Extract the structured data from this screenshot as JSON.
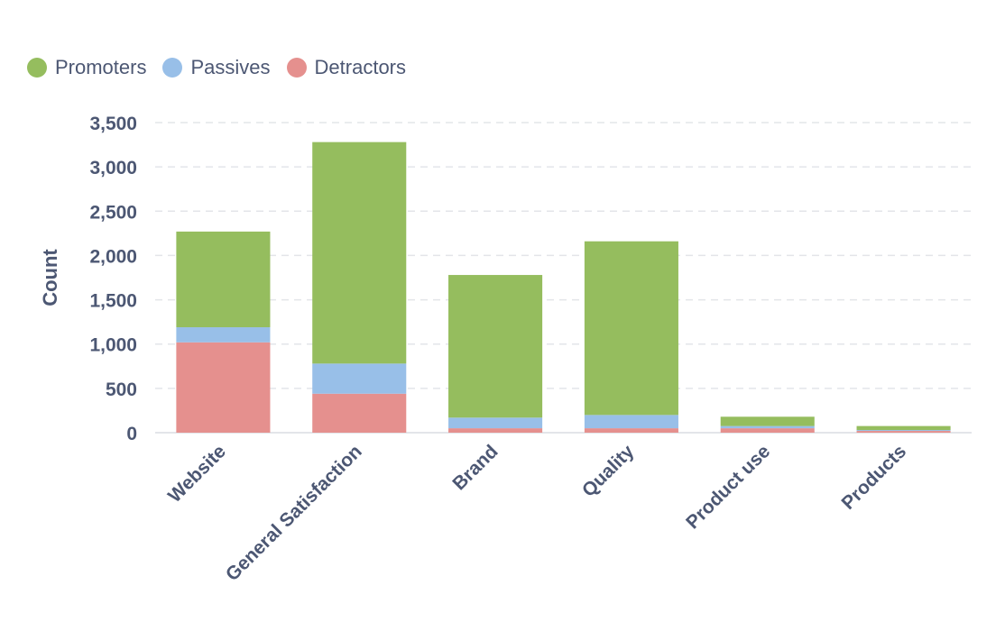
{
  "chart_data": {
    "type": "bar",
    "stacked": true,
    "title": "",
    "xlabel": "",
    "ylabel": "Count",
    "ylim": [
      0,
      3500
    ],
    "yticks": [
      0,
      500,
      1000,
      1500,
      2000,
      2500,
      3000,
      3500
    ],
    "ytick_labels": [
      "0",
      "500",
      "1,000",
      "1,500",
      "2,000",
      "2,500",
      "3,000",
      "3,500"
    ],
    "grid": true,
    "legend_position": "top-left",
    "categories": [
      "Website",
      "General Satisfaction",
      "Brand",
      "Quality",
      "Product use",
      "Products"
    ],
    "series": [
      {
        "name": "Detractors",
        "color": "#e5908e",
        "values": [
          1020,
          440,
          50,
          50,
          50,
          20
        ]
      },
      {
        "name": "Passives",
        "color": "#98bfe8",
        "values": [
          170,
          340,
          120,
          150,
          25,
          10
        ]
      },
      {
        "name": "Promoters",
        "color": "#95bd5e",
        "values": [
          1080,
          2500,
          1610,
          1960,
          105,
          45
        ]
      }
    ]
  }
}
